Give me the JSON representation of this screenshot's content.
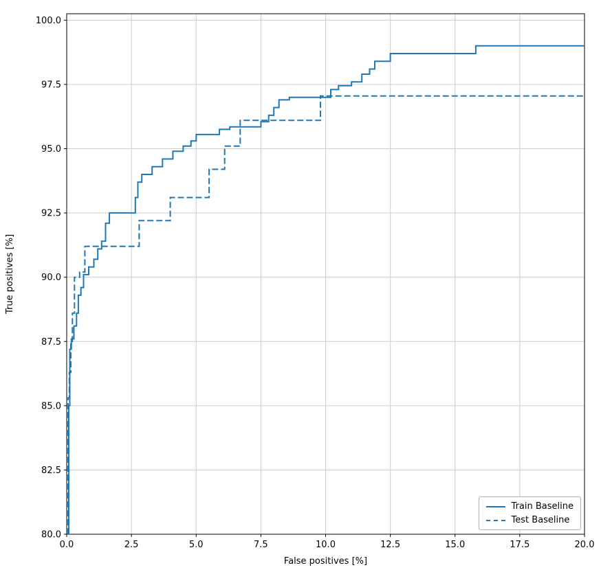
{
  "chart_data": {
    "type": "line",
    "title": "",
    "xlabel": "False positives [%]",
    "ylabel": "True positives [%]",
    "xlim": [
      0,
      20
    ],
    "ylim": [
      80,
      100.25
    ],
    "xticks": [
      0,
      2.5,
      5,
      7.5,
      10,
      12.5,
      15,
      17.5,
      20
    ],
    "xtick_labels": [
      "0.0",
      "2.5",
      "5.0",
      "7.5",
      "10.0",
      "12.5",
      "15.0",
      "17.5",
      "20.0"
    ],
    "yticks": [
      80,
      82.5,
      85,
      87.5,
      90,
      92.5,
      95,
      97.5,
      100
    ],
    "ytick_labels": [
      "80.0",
      "82.5",
      "85.0",
      "87.5",
      "90.0",
      "92.5",
      "95.0",
      "97.5",
      "100.0"
    ],
    "grid": true,
    "grid_color": "#cccccc",
    "axis_color": "#000000",
    "line_color": "#1f77b4",
    "legend": {
      "position": "lower right",
      "entries": [
        {
          "label": "Train Baseline",
          "dash": "solid"
        },
        {
          "label": "Test Baseline",
          "dash": "dashed"
        }
      ]
    },
    "series": [
      {
        "name": "Train Baseline",
        "dash": "solid",
        "points": [
          [
            0.08,
            80.0
          ],
          [
            0.08,
            85.0
          ],
          [
            0.12,
            85.0
          ],
          [
            0.12,
            87.2
          ],
          [
            0.18,
            87.2
          ],
          [
            0.18,
            87.6
          ],
          [
            0.28,
            87.6
          ],
          [
            0.28,
            88.1
          ],
          [
            0.38,
            88.1
          ],
          [
            0.38,
            88.6
          ],
          [
            0.45,
            88.6
          ],
          [
            0.45,
            89.3
          ],
          [
            0.55,
            89.3
          ],
          [
            0.55,
            89.6
          ],
          [
            0.65,
            89.6
          ],
          [
            0.65,
            90.1
          ],
          [
            0.85,
            90.1
          ],
          [
            0.85,
            90.4
          ],
          [
            1.05,
            90.4
          ],
          [
            1.05,
            90.7
          ],
          [
            1.2,
            90.7
          ],
          [
            1.2,
            91.1
          ],
          [
            1.35,
            91.1
          ],
          [
            1.35,
            91.4
          ],
          [
            1.5,
            91.4
          ],
          [
            1.5,
            92.1
          ],
          [
            1.65,
            92.1
          ],
          [
            1.65,
            92.5
          ],
          [
            2.65,
            92.5
          ],
          [
            2.65,
            93.1
          ],
          [
            2.75,
            93.1
          ],
          [
            2.75,
            93.7
          ],
          [
            2.9,
            93.7
          ],
          [
            2.9,
            94.0
          ],
          [
            3.3,
            94.0
          ],
          [
            3.3,
            94.3
          ],
          [
            3.7,
            94.3
          ],
          [
            3.7,
            94.6
          ],
          [
            4.1,
            94.6
          ],
          [
            4.1,
            94.9
          ],
          [
            4.5,
            94.9
          ],
          [
            4.5,
            95.1
          ],
          [
            4.8,
            95.1
          ],
          [
            4.8,
            95.3
          ],
          [
            5.0,
            95.3
          ],
          [
            5.0,
            95.55
          ],
          [
            5.9,
            95.55
          ],
          [
            5.9,
            95.75
          ],
          [
            6.3,
            95.75
          ],
          [
            6.3,
            95.85
          ],
          [
            7.5,
            95.85
          ],
          [
            7.5,
            96.05
          ],
          [
            7.8,
            96.05
          ],
          [
            7.8,
            96.3
          ],
          [
            8.0,
            96.3
          ],
          [
            8.0,
            96.6
          ],
          [
            8.2,
            96.6
          ],
          [
            8.2,
            96.9
          ],
          [
            8.6,
            96.9
          ],
          [
            8.6,
            97.0
          ],
          [
            10.2,
            97.0
          ],
          [
            10.2,
            97.3
          ],
          [
            10.5,
            97.3
          ],
          [
            10.5,
            97.45
          ],
          [
            11.0,
            97.45
          ],
          [
            11.0,
            97.6
          ],
          [
            11.4,
            97.6
          ],
          [
            11.4,
            97.9
          ],
          [
            11.7,
            97.9
          ],
          [
            11.7,
            98.1
          ],
          [
            11.9,
            98.1
          ],
          [
            11.9,
            98.4
          ],
          [
            12.5,
            98.4
          ],
          [
            12.5,
            98.7
          ],
          [
            15.8,
            98.7
          ],
          [
            15.8,
            99.0
          ],
          [
            20.0,
            99.0
          ]
        ]
      },
      {
        "name": "Test Baseline",
        "dash": "dashed",
        "points": [
          [
            0.05,
            80.0
          ],
          [
            0.05,
            85.3
          ],
          [
            0.1,
            85.3
          ],
          [
            0.1,
            86.3
          ],
          [
            0.16,
            86.3
          ],
          [
            0.16,
            87.5
          ],
          [
            0.22,
            87.5
          ],
          [
            0.22,
            88.6
          ],
          [
            0.3,
            88.6
          ],
          [
            0.3,
            90.0
          ],
          [
            0.5,
            90.0
          ],
          [
            0.5,
            90.2
          ],
          [
            0.7,
            90.2
          ],
          [
            0.7,
            91.2
          ],
          [
            2.8,
            91.2
          ],
          [
            2.8,
            92.2
          ],
          [
            4.0,
            92.2
          ],
          [
            4.0,
            93.1
          ],
          [
            5.5,
            93.1
          ],
          [
            5.5,
            94.2
          ],
          [
            6.1,
            94.2
          ],
          [
            6.1,
            95.1
          ],
          [
            6.7,
            95.1
          ],
          [
            6.7,
            96.1
          ],
          [
            9.8,
            96.1
          ],
          [
            9.8,
            97.05
          ],
          [
            20.0,
            97.05
          ]
        ]
      }
    ]
  }
}
